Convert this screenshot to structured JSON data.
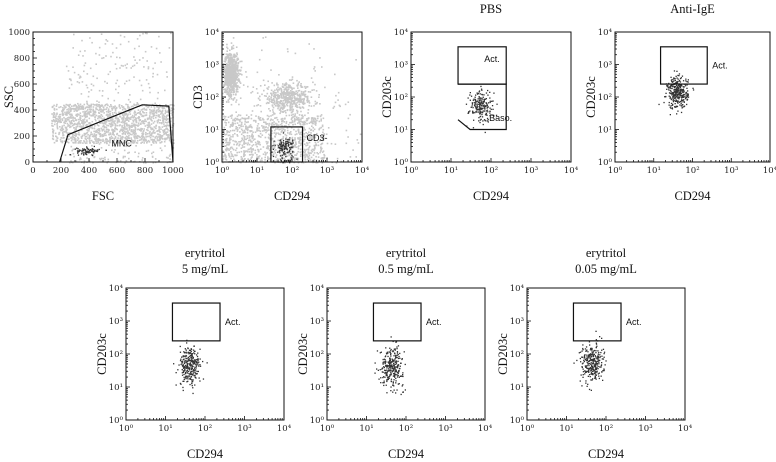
{
  "figure_colors": {
    "background": "#ffffff",
    "axes": "#111111",
    "events_dark": "#333333",
    "events_light": "#c8c8c8"
  },
  "chart_data": [
    {
      "id": "p1",
      "type": "scatter",
      "title": "",
      "xlabel": "FSC",
      "ylabel": "SSC",
      "xscale": "linear",
      "yscale": "linear",
      "xlim": [
        0,
        1000
      ],
      "ylim": [
        0,
        1000
      ],
      "xticks": [
        "0",
        "100",
        "200",
        "300",
        "400",
        "500",
        "600",
        "700",
        "800",
        "900",
        "1000"
      ],
      "yticks": [
        "0",
        "50",
        "100",
        "150",
        "200",
        "250",
        "300",
        "350",
        "400",
        "450",
        "500",
        "550",
        "600",
        "650",
        "700",
        "750",
        "800",
        "850",
        "900",
        "950",
        "1000"
      ],
      "xtick_labels_shown": [
        "0",
        "200",
        "400",
        "600",
        "800",
        "1000"
      ],
      "ytick_labels_shown": [
        "0",
        "200",
        "400",
        "600",
        "800",
        "1000"
      ],
      "events": [
        {
          "color": "light",
          "n": 1400,
          "x": [
            130,
            1000
          ],
          "y": [
            150,
            450
          ],
          "spread": "uniform"
        },
        {
          "color": "light",
          "n": 700,
          "x": [
            220,
            1000
          ],
          "y": [
            0,
            1000
          ],
          "spread": "sparse"
        },
        {
          "color": "dark",
          "n": 80,
          "x": [
            300,
            480
          ],
          "y": [
            60,
            120
          ],
          "spread": "blob"
        }
      ],
      "gates": [
        {
          "label": "MNC",
          "shape": "polygon",
          "points": [
            [
              190,
              0
            ],
            [
              250,
              210
            ],
            [
              780,
              440
            ],
            [
              970,
              430
            ],
            [
              1000,
              0
            ]
          ]
        }
      ]
    },
    {
      "id": "p2",
      "type": "scatter",
      "title": "",
      "xlabel": "CD294",
      "ylabel": "CD3",
      "xscale": "log",
      "yscale": "log",
      "xlim": [
        1,
        10000
      ],
      "ylim": [
        1,
        10000
      ],
      "tick_labels": [
        "10⁰",
        "10¹",
        "10²",
        "10³",
        "10⁴"
      ],
      "events": [
        {
          "color": "light",
          "n": 800,
          "x": [
            1,
            3
          ],
          "y": [
            100,
            3000
          ],
          "spread": "blob"
        },
        {
          "color": "light",
          "n": 900,
          "x": [
            1,
            800
          ],
          "y": [
            1,
            30
          ],
          "spread": "uniform"
        },
        {
          "color": "light",
          "n": 500,
          "x": [
            10,
            500
          ],
          "y": [
            30,
            300
          ],
          "spread": "blob"
        },
        {
          "color": "light",
          "n": 300,
          "x": [
            1,
            10000
          ],
          "y": [
            1,
            8000
          ],
          "spread": "sparse"
        },
        {
          "color": "dark",
          "n": 120,
          "x": [
            30,
            120
          ],
          "y": [
            1.2,
            7
          ],
          "spread": "blob"
        }
      ],
      "gates": [
        {
          "label": "CD3-",
          "shape": "rect",
          "x": [
            25,
            200
          ],
          "y": [
            1,
            12
          ]
        }
      ]
    },
    {
      "id": "p3",
      "type": "scatter",
      "title": "PBS",
      "xlabel": "CD294",
      "ylabel": "CD203c",
      "xscale": "log",
      "yscale": "log",
      "xlim": [
        1,
        10000
      ],
      "ylim": [
        1,
        10000
      ],
      "tick_labels": [
        "10⁰",
        "10¹",
        "10²",
        "10³",
        "10⁴"
      ],
      "events": [
        {
          "color": "dark",
          "n": 200,
          "x": [
            25,
            120
          ],
          "y": [
            15,
            200
          ],
          "spread": "blob"
        }
      ],
      "gates": [
        {
          "label": "Act.",
          "shape": "rect",
          "x": [
            15,
            240
          ],
          "y": [
            250,
            3500
          ]
        },
        {
          "label": "Baso.",
          "shape": "polygon",
          "points": [
            [
              15,
              250
            ],
            [
              240,
              250
            ],
            [
              240,
              10
            ],
            [
              30,
              10
            ],
            [
              15,
              20
            ]
          ]
        }
      ]
    },
    {
      "id": "p4",
      "type": "scatter",
      "title": "Anti-IgE",
      "xlabel": "CD294",
      "ylabel": "CD203c",
      "xscale": "log",
      "yscale": "log",
      "xlim": [
        1,
        10000
      ],
      "ylim": [
        1,
        10000
      ],
      "tick_labels": [
        "10⁰",
        "10¹",
        "10²",
        "10³",
        "10⁴"
      ],
      "events": [
        {
          "color": "dark",
          "n": 320,
          "x": [
            20,
            80
          ],
          "y": [
            40,
            500
          ],
          "spread": "blob"
        }
      ],
      "gates": [
        {
          "label": "Act.",
          "shape": "rect",
          "x": [
            15,
            240
          ],
          "y": [
            250,
            3500
          ]
        }
      ]
    },
    {
      "id": "p5",
      "type": "scatter",
      "title": "erytritol",
      "subtitle": "5 mg/mL",
      "xlabel": "CD294",
      "ylabel": "CD203c",
      "xscale": "log",
      "yscale": "log",
      "xlim": [
        1,
        10000
      ],
      "ylim": [
        1,
        10000
      ],
      "tick_labels": [
        "10⁰",
        "10¹",
        "10²",
        "10³",
        "10⁴"
      ],
      "events": [
        {
          "color": "dark",
          "n": 280,
          "x": [
            20,
            80
          ],
          "y": [
            10,
            200
          ],
          "spread": "blob"
        }
      ],
      "gates": [
        {
          "label": "Act.",
          "shape": "rect",
          "x": [
            15,
            240
          ],
          "y": [
            250,
            3500
          ]
        }
      ]
    },
    {
      "id": "p6",
      "type": "scatter",
      "title": "erytritol",
      "subtitle": "0.5 mg/mL",
      "xlabel": "CD294",
      "ylabel": "CD203c",
      "xscale": "log",
      "yscale": "log",
      "xlim": [
        1,
        10000
      ],
      "ylim": [
        1,
        10000
      ],
      "tick_labels": [
        "10⁰",
        "10¹",
        "10²",
        "10³",
        "10⁴"
      ],
      "events": [
        {
          "color": "dark",
          "n": 280,
          "x": [
            20,
            90
          ],
          "y": [
            10,
            200
          ],
          "spread": "blob"
        }
      ],
      "gates": [
        {
          "label": "Act.",
          "shape": "rect",
          "x": [
            15,
            240
          ],
          "y": [
            250,
            3500
          ]
        }
      ]
    },
    {
      "id": "p7",
      "type": "scatter",
      "title": "erytritol",
      "subtitle": "0.05 mg/mL",
      "xlabel": "CD294",
      "ylabel": "CD203c",
      "xscale": "log",
      "yscale": "log",
      "xlim": [
        1,
        10000
      ],
      "ylim": [
        1,
        10000
      ],
      "tick_labels": [
        "10⁰",
        "10¹",
        "10²",
        "10³",
        "10⁴"
      ],
      "events": [
        {
          "color": "dark",
          "n": 280,
          "x": [
            20,
            90
          ],
          "y": [
            12,
            250
          ],
          "spread": "blob"
        }
      ],
      "gates": [
        {
          "label": "Act.",
          "shape": "rect",
          "x": [
            15,
            240
          ],
          "y": [
            250,
            3500
          ]
        }
      ]
    }
  ]
}
